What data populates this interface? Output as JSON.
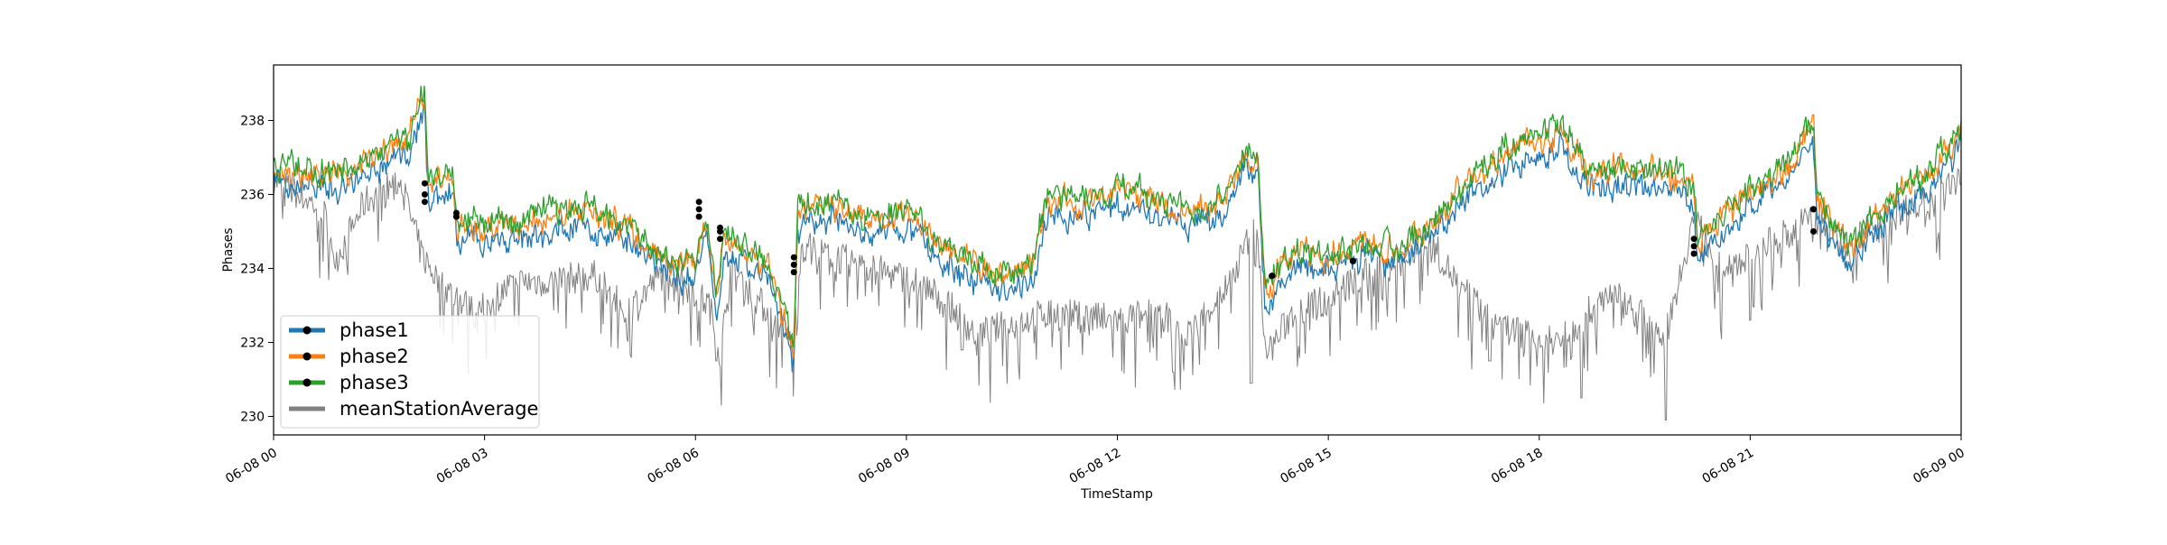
{
  "chart_data": {
    "type": "line",
    "xlabel": "TimeStamp",
    "ylabel": "Phases",
    "x_range": [
      "06-08 00:00",
      "06-09 00:00"
    ],
    "ylim": [
      229.5,
      239.5
    ],
    "grid": false,
    "legend_placement": "lower-left",
    "x_ticks": [
      {
        "hour": 0,
        "label": "06-08 00"
      },
      {
        "hour": 3,
        "label": "06-08 03"
      },
      {
        "hour": 6,
        "label": "06-08 06"
      },
      {
        "hour": 9,
        "label": "06-08 09"
      },
      {
        "hour": 12,
        "label": "06-08 12"
      },
      {
        "hour": 15,
        "label": "06-08 15"
      },
      {
        "hour": 18,
        "label": "06-08 18"
      },
      {
        "hour": 21,
        "label": "06-08 21"
      },
      {
        "hour": 24,
        "label": "06-09 00"
      }
    ],
    "y_ticks": [
      230,
      232,
      234,
      236,
      238
    ],
    "series": [
      {
        "name": "phase1",
        "color": "#1f77b4",
        "marker": "dot"
      },
      {
        "name": "phase2",
        "color": "#ff7f0e",
        "marker": "dot"
      },
      {
        "name": "phase3",
        "color": "#2ca02c",
        "marker": "dot"
      },
      {
        "name": "meanStationAverage",
        "color": "#808080",
        "marker": "none"
      }
    ],
    "phase3_hourly": [
      {
        "hour": 0.0,
        "value": 236.8
      },
      {
        "hour": 1.0,
        "value": 236.6
      },
      {
        "hour": 1.9,
        "value": 237.6
      },
      {
        "hour": 2.15,
        "value": 238.8
      },
      {
        "hour": 2.2,
        "value": 236.3
      },
      {
        "hour": 2.55,
        "value": 236.6
      },
      {
        "hour": 2.6,
        "value": 235.2
      },
      {
        "hour": 3.5,
        "value": 235.3
      },
      {
        "hour": 4.5,
        "value": 235.7
      },
      {
        "hour": 5.0,
        "value": 235.2
      },
      {
        "hour": 5.5,
        "value": 234.4
      },
      {
        "hour": 6.0,
        "value": 234.2
      },
      {
        "hour": 6.15,
        "value": 235.6
      },
      {
        "hour": 6.3,
        "value": 233.2
      },
      {
        "hour": 6.4,
        "value": 235.0
      },
      {
        "hour": 7.0,
        "value": 234.2
      },
      {
        "hour": 7.2,
        "value": 233.2
      },
      {
        "hour": 7.4,
        "value": 231.8
      },
      {
        "hour": 7.45,
        "value": 235.6
      },
      {
        "hour": 8.0,
        "value": 235.8
      },
      {
        "hour": 8.5,
        "value": 235.4
      },
      {
        "hour": 9.0,
        "value": 235.6
      },
      {
        "hour": 9.5,
        "value": 234.6
      },
      {
        "hour": 10.0,
        "value": 234.2
      },
      {
        "hour": 10.5,
        "value": 233.8
      },
      {
        "hour": 10.8,
        "value": 234.2
      },
      {
        "hour": 11.0,
        "value": 236.0
      },
      {
        "hour": 11.5,
        "value": 235.8
      },
      {
        "hour": 12.0,
        "value": 236.3
      },
      {
        "hour": 12.5,
        "value": 236.0
      },
      {
        "hour": 13.0,
        "value": 235.6
      },
      {
        "hour": 13.5,
        "value": 236.0
      },
      {
        "hour": 13.8,
        "value": 237.2
      },
      {
        "hour": 14.0,
        "value": 237.0
      },
      {
        "hour": 14.1,
        "value": 233.4
      },
      {
        "hour": 14.5,
        "value": 234.6
      },
      {
        "hour": 15.0,
        "value": 234.4
      },
      {
        "hour": 15.5,
        "value": 234.8
      },
      {
        "hour": 16.0,
        "value": 234.6
      },
      {
        "hour": 16.5,
        "value": 235.4
      },
      {
        "hour": 17.0,
        "value": 236.4
      },
      {
        "hour": 17.5,
        "value": 237.2
      },
      {
        "hour": 18.0,
        "value": 237.6
      },
      {
        "hour": 18.3,
        "value": 237.8
      },
      {
        "hour": 18.7,
        "value": 236.6
      },
      {
        "hour": 19.2,
        "value": 236.8
      },
      {
        "hour": 19.6,
        "value": 236.6
      },
      {
        "hour": 20.0,
        "value": 236.6
      },
      {
        "hour": 20.2,
        "value": 236.2
      },
      {
        "hour": 20.25,
        "value": 234.8
      },
      {
        "hour": 20.8,
        "value": 235.8
      },
      {
        "hour": 21.5,
        "value": 236.8
      },
      {
        "hour": 21.9,
        "value": 238.0
      },
      {
        "hour": 21.95,
        "value": 236.0
      },
      {
        "hour": 22.4,
        "value": 234.6
      },
      {
        "hour": 23.0,
        "value": 236.0
      },
      {
        "hour": 23.5,
        "value": 236.6
      },
      {
        "hour": 24.0,
        "value": 237.8
      }
    ],
    "phase2_offset_from_phase3": -0.1,
    "phase1_offset_from_phase3": -0.5,
    "meanStationAverage_hourly": [
      {
        "hour": 0.0,
        "value": 236.4
      },
      {
        "hour": 0.7,
        "value": 235.6
      },
      {
        "hour": 0.9,
        "value": 234.3
      },
      {
        "hour": 1.3,
        "value": 235.8
      },
      {
        "hour": 1.8,
        "value": 236.4
      },
      {
        "hour": 2.1,
        "value": 234.4
      },
      {
        "hour": 2.4,
        "value": 233.5
      },
      {
        "hour": 2.9,
        "value": 232.8
      },
      {
        "hour": 3.4,
        "value": 233.6
      },
      {
        "hour": 4.6,
        "value": 233.8
      },
      {
        "hour": 5.0,
        "value": 232.8
      },
      {
        "hour": 5.6,
        "value": 234.0
      },
      {
        "hour": 6.2,
        "value": 233.0
      },
      {
        "hour": 6.35,
        "value": 231.6
      },
      {
        "hour": 6.5,
        "value": 234.0
      },
      {
        "hour": 7.4,
        "value": 232.0
      },
      {
        "hour": 7.5,
        "value": 234.6
      },
      {
        "hour": 8.5,
        "value": 234.0
      },
      {
        "hour": 9.2,
        "value": 233.6
      },
      {
        "hour": 9.6,
        "value": 233.0
      },
      {
        "hour": 10.0,
        "value": 232.2
      },
      {
        "hour": 11.0,
        "value": 232.8
      },
      {
        "hour": 12.0,
        "value": 232.6
      },
      {
        "hour": 12.6,
        "value": 232.8
      },
      {
        "hour": 13.0,
        "value": 232.2
      },
      {
        "hour": 13.6,
        "value": 233.6
      },
      {
        "hour": 14.0,
        "value": 235.4
      },
      {
        "hour": 14.1,
        "value": 231.6
      },
      {
        "hour": 14.5,
        "value": 232.8
      },
      {
        "hour": 15.0,
        "value": 233.2
      },
      {
        "hour": 15.5,
        "value": 233.8
      },
      {
        "hour": 16.0,
        "value": 234.2
      },
      {
        "hour": 16.5,
        "value": 234.6
      },
      {
        "hour": 16.9,
        "value": 233.4
      },
      {
        "hour": 17.5,
        "value": 232.4
      },
      {
        "hour": 18.3,
        "value": 232.0
      },
      {
        "hour": 19.0,
        "value": 233.4
      },
      {
        "hour": 19.8,
        "value": 232.2
      },
      {
        "hour": 20.2,
        "value": 235.4
      },
      {
        "hour": 20.6,
        "value": 234.0
      },
      {
        "hour": 21.2,
        "value": 234.6
      },
      {
        "hour": 21.9,
        "value": 235.4
      },
      {
        "hour": 22.3,
        "value": 234.6
      },
      {
        "hour": 23.0,
        "value": 235.4
      },
      {
        "hour": 24.0,
        "value": 236.4
      }
    ],
    "meanStationAverage_dips": [
      {
        "hour": 2.7,
        "value": 233.0
      },
      {
        "hour": 3.0,
        "value": 232.6
      },
      {
        "hour": 6.3,
        "value": 231.5
      },
      {
        "hour": 9.8,
        "value": 231.8
      },
      {
        "hour": 10.6,
        "value": 231.4
      },
      {
        "hour": 12.8,
        "value": 231.2
      },
      {
        "hour": 13.9,
        "value": 230.9
      },
      {
        "hour": 17.3,
        "value": 231.5
      },
      {
        "hour": 18.6,
        "value": 230.5
      },
      {
        "hour": 19.8,
        "value": 229.9
      },
      {
        "hour": 21.0,
        "value": 232.6
      }
    ],
    "marker_points": [
      {
        "hour": 2.15,
        "phase1": 235.8,
        "phase2": 236.3,
        "phase3": 236.0
      },
      {
        "hour": 2.6,
        "phase1": 235.4,
        "phase2": 235.5,
        "phase3": 235.4
      },
      {
        "hour": 6.05,
        "phase1": 235.4,
        "phase2": 235.8,
        "phase3": 235.6
      },
      {
        "hour": 6.35,
        "phase1": 234.8,
        "phase2": 235.0,
        "phase3": 235.1
      },
      {
        "hour": 7.4,
        "phase1": 233.9,
        "phase2": 234.1,
        "phase3": 234.3
      },
      {
        "hour": 14.2,
        "phase1": 233.8,
        "phase2": 233.8,
        "phase3": 233.8
      },
      {
        "hour": 15.35,
        "phase1": 234.2,
        "phase2": 234.2,
        "phase3": 234.2
      },
      {
        "hour": 20.2,
        "phase1": 234.4,
        "phase2": 234.6,
        "phase3": 234.8
      },
      {
        "hour": 21.9,
        "phase1": 235.0,
        "phase2": 235.6,
        "phase3": 235.6
      }
    ]
  }
}
